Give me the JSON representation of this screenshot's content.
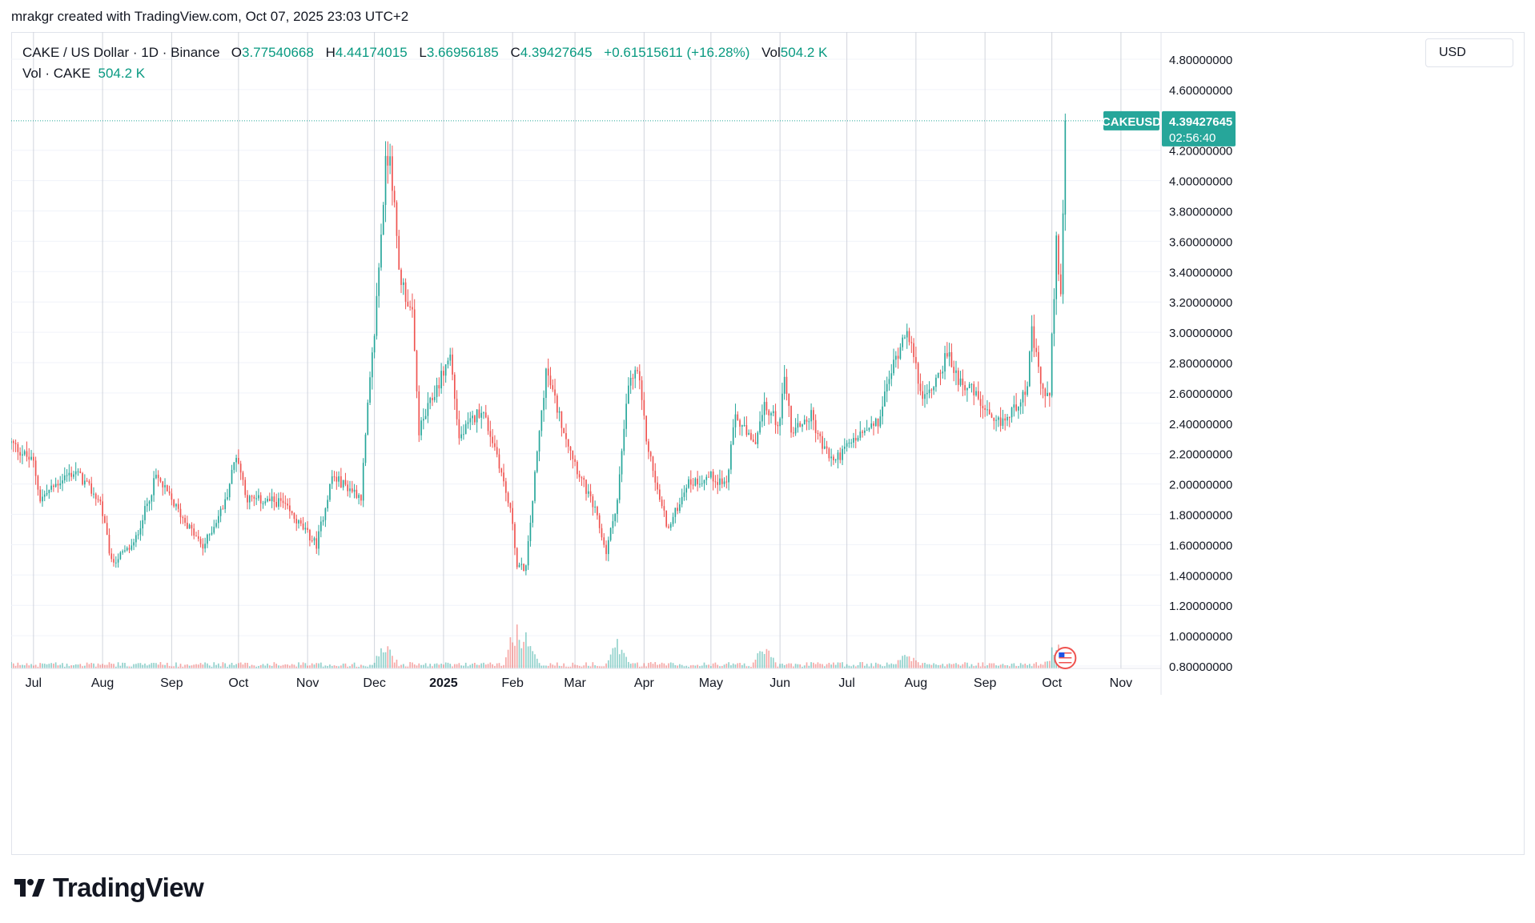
{
  "header": {
    "author_line": "mrakgr created with TradingView.com, Oct 07, 2025 23:03 UTC+2"
  },
  "legend": {
    "symbol": "CAKE / US Dollar · 1D · Binance",
    "open_label": "O",
    "open": "3.77540668",
    "high_label": "H",
    "high": "4.44174015",
    "low_label": "L",
    "low": "3.66956185",
    "close_label": "C",
    "close": "4.39427645",
    "change": "+0.61515611 (+16.28%)",
    "vol_label": "Vol",
    "vol": "504.2 K",
    "vol_row_label": "Vol · CAKE",
    "vol_row_value": "504.2 K"
  },
  "currency": "USD",
  "price_tag": {
    "symbol": "CAKEUSD",
    "price": "4.39427645",
    "countdown": "02:56:40"
  },
  "footer": {
    "brand": "TradingView",
    "logo": "tradingview-logo-icon"
  },
  "colors": {
    "up": "#26a69a",
    "down": "#ef5350",
    "grid": "#e9ecf2",
    "text": "#131722",
    "label_bg": "#26a69a"
  },
  "chart_data": {
    "type": "candlestick",
    "title": "CAKE / US Dollar · 1D · Binance",
    "ylim": [
      0.8,
      4.8
    ],
    "y_ticks": [
      "4.80000000",
      "4.60000000",
      "4.20000000",
      "4.00000000",
      "3.80000000",
      "3.60000000",
      "3.40000000",
      "3.20000000",
      "3.00000000",
      "2.80000000",
      "2.60000000",
      "2.40000000",
      "2.20000000",
      "2.00000000",
      "1.80000000",
      "1.60000000",
      "1.40000000",
      "1.20000000",
      "1.00000000",
      "0.80000000"
    ],
    "y_tick_values": [
      4.8,
      4.6,
      4.2,
      4.0,
      3.8,
      3.6,
      3.4,
      3.2,
      3.0,
      2.8,
      2.6,
      2.4,
      2.2,
      2.0,
      1.8,
      1.6,
      1.4,
      1.2,
      1.0,
      0.8
    ],
    "x_start_date": "2024-06-21",
    "x_end_date": "2025-11-19",
    "x_ticks": [
      {
        "label": "Jul",
        "date": "2024-07-01"
      },
      {
        "label": "Aug",
        "date": "2024-08-01"
      },
      {
        "label": "Sep",
        "date": "2024-09-01"
      },
      {
        "label": "Oct",
        "date": "2024-10-01"
      },
      {
        "label": "Nov",
        "date": "2024-11-01"
      },
      {
        "label": "Dec",
        "date": "2024-12-01"
      },
      {
        "label": "2025",
        "date": "2025-01-01",
        "bold": true
      },
      {
        "label": "Feb",
        "date": "2025-02-01"
      },
      {
        "label": "Mar",
        "date": "2025-03-01"
      },
      {
        "label": "Apr",
        "date": "2025-04-01"
      },
      {
        "label": "May",
        "date": "2025-05-01"
      },
      {
        "label": "Jun",
        "date": "2025-06-01"
      },
      {
        "label": "Jul",
        "date": "2025-07-01"
      },
      {
        "label": "Aug",
        "date": "2025-08-01"
      },
      {
        "label": "Sep",
        "date": "2025-09-01"
      },
      {
        "label": "Oct",
        "date": "2025-10-01"
      },
      {
        "label": "Nov",
        "date": "2025-11-01"
      }
    ],
    "close_anchors": [
      [
        "2024-06-21",
        2.27
      ],
      [
        "2024-07-01",
        2.14
      ],
      [
        "2024-07-04",
        1.9
      ],
      [
        "2024-07-15",
        2.05
      ],
      [
        "2024-07-20",
        2.08
      ],
      [
        "2024-07-31",
        1.88
      ],
      [
        "2024-08-05",
        1.48
      ],
      [
        "2024-08-15",
        1.6
      ],
      [
        "2024-08-25",
        2.05
      ],
      [
        "2024-09-05",
        1.8
      ],
      [
        "2024-09-15",
        1.58
      ],
      [
        "2024-09-25",
        1.88
      ],
      [
        "2024-09-30",
        2.2
      ],
      [
        "2024-10-05",
        1.9
      ],
      [
        "2024-10-20",
        1.88
      ],
      [
        "2024-11-05",
        1.6
      ],
      [
        "2024-11-12",
        2.05
      ],
      [
        "2024-11-25",
        1.92
      ],
      [
        "2024-11-28",
        2.5
      ],
      [
        "2024-12-01",
        3.0
      ],
      [
        "2024-12-06",
        4.1
      ],
      [
        "2024-12-08",
        4.2
      ],
      [
        "2024-12-12",
        3.4
      ],
      [
        "2024-12-18",
        3.1
      ],
      [
        "2024-12-21",
        2.35
      ],
      [
        "2024-12-28",
        2.6
      ],
      [
        "2025-01-04",
        2.85
      ],
      [
        "2025-01-08",
        2.3
      ],
      [
        "2025-01-18",
        2.5
      ],
      [
        "2025-01-25",
        2.2
      ],
      [
        "2025-02-01",
        1.75
      ],
      [
        "2025-02-03",
        1.45
      ],
      [
        "2025-02-07",
        1.45
      ],
      [
        "2025-02-12",
        2.2
      ],
      [
        "2025-02-16",
        2.75
      ],
      [
        "2025-02-22",
        2.45
      ],
      [
        "2025-03-02",
        2.1
      ],
      [
        "2025-03-10",
        1.82
      ],
      [
        "2025-03-15",
        1.55
      ],
      [
        "2025-03-20",
        1.9
      ],
      [
        "2025-03-25",
        2.65
      ],
      [
        "2025-03-29",
        2.75
      ],
      [
        "2025-04-02",
        2.3
      ],
      [
        "2025-04-07",
        1.95
      ],
      [
        "2025-04-12",
        1.7
      ],
      [
        "2025-04-20",
        2.0
      ],
      [
        "2025-05-01",
        2.05
      ],
      [
        "2025-05-08",
        2.0
      ],
      [
        "2025-05-12",
        2.45
      ],
      [
        "2025-05-20",
        2.25
      ],
      [
        "2025-05-25",
        2.5
      ],
      [
        "2025-06-01",
        2.4
      ],
      [
        "2025-06-03",
        2.75
      ],
      [
        "2025-06-06",
        2.35
      ],
      [
        "2025-06-15",
        2.45
      ],
      [
        "2025-06-20",
        2.25
      ],
      [
        "2025-06-25",
        2.15
      ],
      [
        "2025-07-05",
        2.3
      ],
      [
        "2025-07-15",
        2.4
      ],
      [
        "2025-07-20",
        2.7
      ],
      [
        "2025-07-28",
        3.05
      ],
      [
        "2025-08-01",
        2.75
      ],
      [
        "2025-08-05",
        2.55
      ],
      [
        "2025-08-10",
        2.7
      ],
      [
        "2025-08-15",
        2.85
      ],
      [
        "2025-08-20",
        2.7
      ],
      [
        "2025-08-27",
        2.6
      ],
      [
        "2025-09-05",
        2.38
      ],
      [
        "2025-09-12",
        2.45
      ],
      [
        "2025-09-20",
        2.65
      ],
      [
        "2025-09-22",
        3.0
      ],
      [
        "2025-09-26",
        2.65
      ],
      [
        "2025-09-30",
        2.55
      ],
      [
        "2025-10-01",
        2.95
      ],
      [
        "2025-10-03",
        3.6
      ],
      [
        "2025-10-05",
        3.25
      ],
      [
        "2025-10-06",
        3.78
      ],
      [
        "2025-10-07",
        4.39427645
      ]
    ],
    "last_candle": {
      "open": 3.77540668,
      "high": 4.44174015,
      "low": 3.66956185,
      "close": 4.39427645
    },
    "volume_spikes": [
      [
        "2024-12-06",
        0.45
      ],
      [
        "2025-02-03",
        0.95
      ],
      [
        "2025-02-07",
        0.8
      ],
      [
        "2025-03-20",
        0.55
      ],
      [
        "2025-05-25",
        0.4
      ],
      [
        "2025-07-28",
        0.3
      ],
      [
        "2025-10-03",
        0.4
      ]
    ]
  }
}
